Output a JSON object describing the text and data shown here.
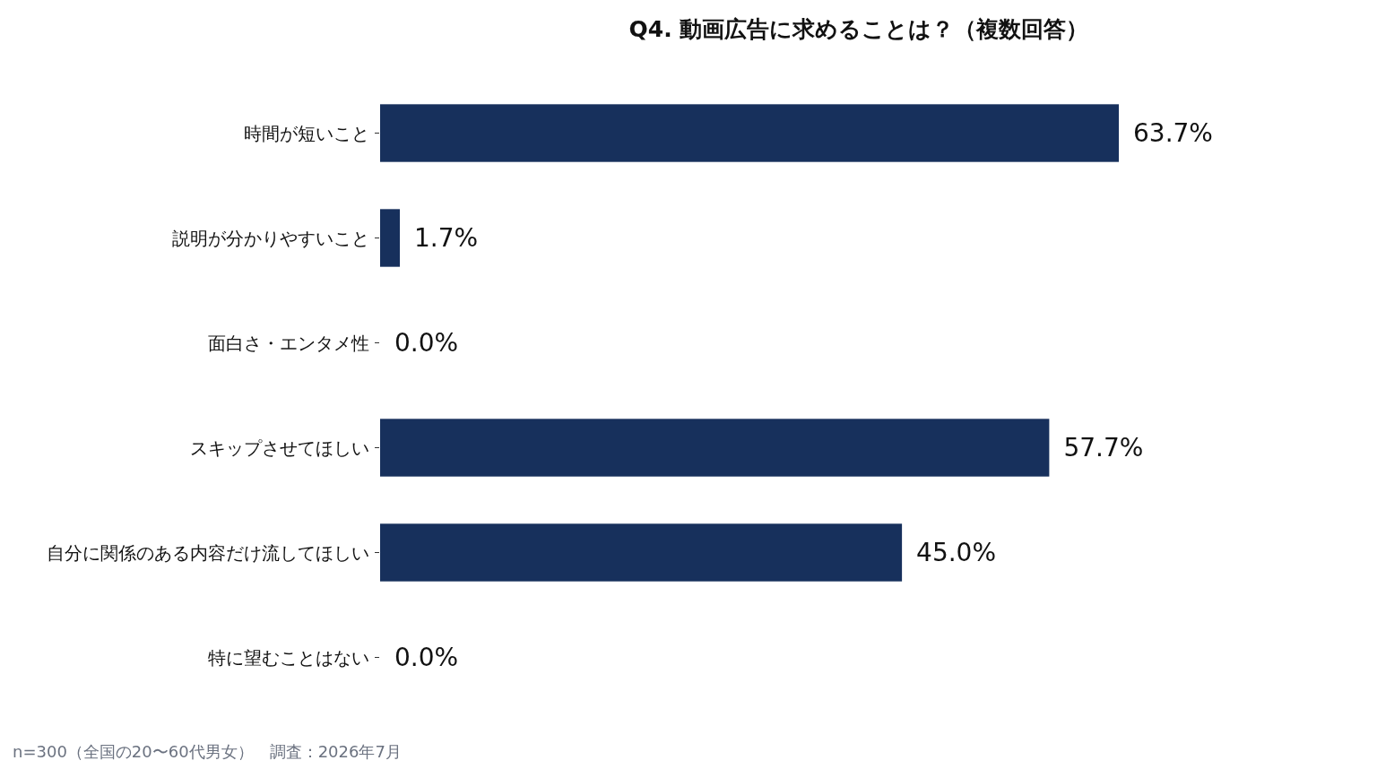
{
  "chart_data": {
    "type": "bar",
    "orientation": "horizontal",
    "title": "Q4. 動画広告に求めることは？（複数回答）",
    "categories": [
      "時間が短いこと",
      "説明が分かりやすいこと",
      "面白さ・エンタメ性",
      "スキップさせてほしい",
      "自分に関係のある内容だけ流してほしい",
      "特に望むことはない"
    ],
    "values": [
      63.7,
      1.7,
      0.0,
      57.7,
      45.0,
      0.0
    ],
    "value_labels": [
      "63.7%",
      "1.7%",
      "0.0%",
      "57.7%",
      "45.0%",
      "0.0%"
    ],
    "color": "#17305c",
    "annotations": [
      "n=300（全国の20〜60代男女）　調査：2026年7月"
    ]
  }
}
